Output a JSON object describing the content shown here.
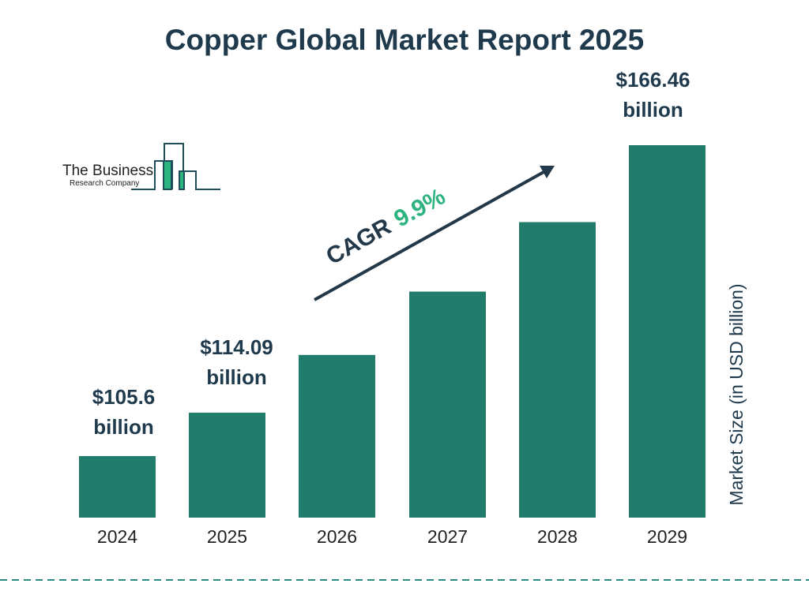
{
  "chart_data": {
    "type": "bar",
    "title": "Copper Global Market Report 2025",
    "ylabel": "Market Size (in USD billion)",
    "categories": [
      "2024",
      "2025",
      "2026",
      "2027",
      "2028",
      "2029"
    ],
    "values": [
      105.6,
      114.09,
      125.4,
      137.8,
      151.4,
      166.46
    ],
    "data_labels": [
      {
        "index": 0,
        "line1": "$105.6",
        "line2": "billion"
      },
      {
        "index": 1,
        "line1": "$114.09",
        "line2": "billion"
      },
      {
        "index": 5,
        "line1": "$166.46",
        "line2": "billion"
      }
    ],
    "cagr": {
      "label": "CAGR",
      "value": "9.9%"
    },
    "bar_color": "#217c6b",
    "cagr_color": "#2db37f",
    "grid": false,
    "legend": "none"
  },
  "logo": {
    "line1": "The Business",
    "line2": "Research Company"
  }
}
